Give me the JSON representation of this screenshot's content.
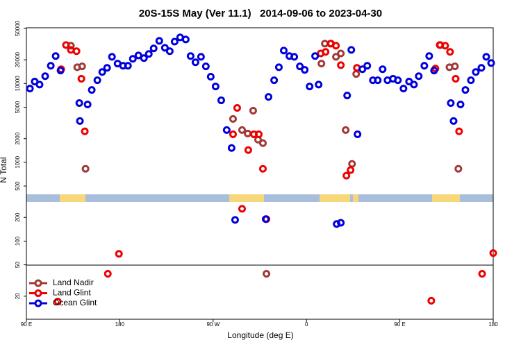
{
  "chart_data": {
    "type": "scatter",
    "title": "20S-15S May (Ver 11.1)   2014-09-06 to 2023-04-30",
    "x_label": "Longitude (deg E)",
    "y_label": "N Total",
    "log_y": true,
    "legend": "bottom-left",
    "xlim": [
      90,
      540
    ],
    "ylim": [
      10.2,
      51000
    ],
    "xticks": [
      {
        "value": 90,
        "label": "90 E"
      },
      180,
      {
        "value": 270,
        "label": "90 W"
      },
      {
        "value": 360,
        "label": "0"
      },
      {
        "value": 450,
        "label": "90 E"
      },
      {
        "value": 540,
        "label": "180"
      }
    ],
    "yticks": [
      20,
      50,
      100,
      200,
      500,
      1000,
      2000,
      5000,
      10000,
      20000,
      50000
    ],
    "series": [
      {
        "name": "Land Nadir",
        "color": "#a03a36",
        "x": [
          132.9,
          139,
          143.7,
          147,
          289.2,
          297.9,
          303.3,
          308.6,
          313.3,
          318,
          321.4,
          374.4,
          377.7,
          383.7,
          388.4,
          393.1,
          397.8,
          403.9,
          407.9,
          489,
          497.8,
          503.1,
          506.4
        ],
        "values": [
          30200,
          16100,
          16500,
          828,
          3550,
          2570,
          2320,
          4520,
          1940,
          1750,
          38.5,
          17900,
          32100,
          32100,
          21800,
          24100,
          2570,
          955,
          13200,
          30800,
          16100,
          16500,
          828
        ]
      },
      {
        "name": "Land Glint",
        "color": "#ee0000",
        "x": [
          120.2,
          123.5,
          128.2,
          132.9,
          138.3,
          143,
          146.3,
          168.5,
          179.2,
          289.2,
          293.2,
          297.9,
          303.9,
          309.3,
          314,
          318,
          321.4,
          373.7,
          378.4,
          383.1,
          388.4,
          393.1,
          398.5,
          402.5,
          408.6,
          480.3,
          484.3,
          488.4,
          493.7,
          498.4,
          503.8,
          507.1,
          529.3,
          540
        ],
        "values": [
          17.1,
          15200,
          30800,
          26700,
          25700,
          11500,
          2470,
          38.5,
          69,
          2270,
          4900,
          257,
          1430,
          2270,
          2270,
          828,
          190,
          24100,
          25200,
          32100,
          30200,
          17100,
          677,
          796,
          15800,
          17.5,
          15500,
          30800,
          30200,
          25200,
          11500,
          2470,
          38.5,
          70.5
        ]
      },
      {
        "name": "Ocean Glint",
        "color": "#0000dd",
        "x": [
          93.4,
          98,
          102.7,
          108.1,
          113.5,
          118.2,
          122.9,
          141,
          141.6,
          149,
          153,
          158.4,
          163.1,
          167.8,
          172.5,
          177.9,
          183.2,
          187.9,
          192.6,
          198,
          203.3,
          208,
          212.7,
          218.1,
          223.5,
          228.2,
          232.9,
          238.2,
          243.6,
          248.3,
          253,
          258.3,
          263,
          267.7,
          272.4,
          277.8,
          283.1,
          287.8,
          291.2,
          320.7,
          323.4,
          328.8,
          333.4,
          338.1,
          343.5,
          348.2,
          353.6,
          358.3,
          363,
          368.3,
          371.7,
          389.1,
          393.1,
          399.2,
          403.2,
          409.2,
          413.9,
          418.6,
          424,
          428.7,
          433.4,
          438.1,
          443.4,
          448.1,
          453.5,
          458.9,
          463.6,
          468.2,
          473.6,
          478.3,
          483,
          499.1,
          501.8,
          508.5,
          513.2,
          518.5,
          523.2,
          528.6,
          533.3,
          538
        ],
        "values": [
          8630,
          10600,
          9700,
          12400,
          16800,
          22300,
          14600,
          5650,
          3340,
          5420,
          8280,
          11000,
          14000,
          15800,
          21800,
          17900,
          16800,
          16800,
          20600,
          22700,
          21000,
          23700,
          27900,
          34800,
          28400,
          25700,
          34000,
          38500,
          36200,
          22300,
          18600,
          21800,
          16500,
          12200,
          9170,
          6120,
          2570,
          1520,
          186,
          190,
          6770,
          11000,
          16100,
          26200,
          22300,
          21800,
          16500,
          14900,
          9170,
          22300,
          9700,
          165,
          171,
          7050,
          26700,
          2270,
          15200,
          16800,
          11000,
          11000,
          15200,
          11000,
          11500,
          11000,
          8630,
          10600,
          9700,
          12400,
          16800,
          22300,
          14600,
          5650,
          3340,
          5420,
          8280,
          11000,
          14000,
          15800,
          21800,
          18200
        ]
      }
    ]
  }
}
